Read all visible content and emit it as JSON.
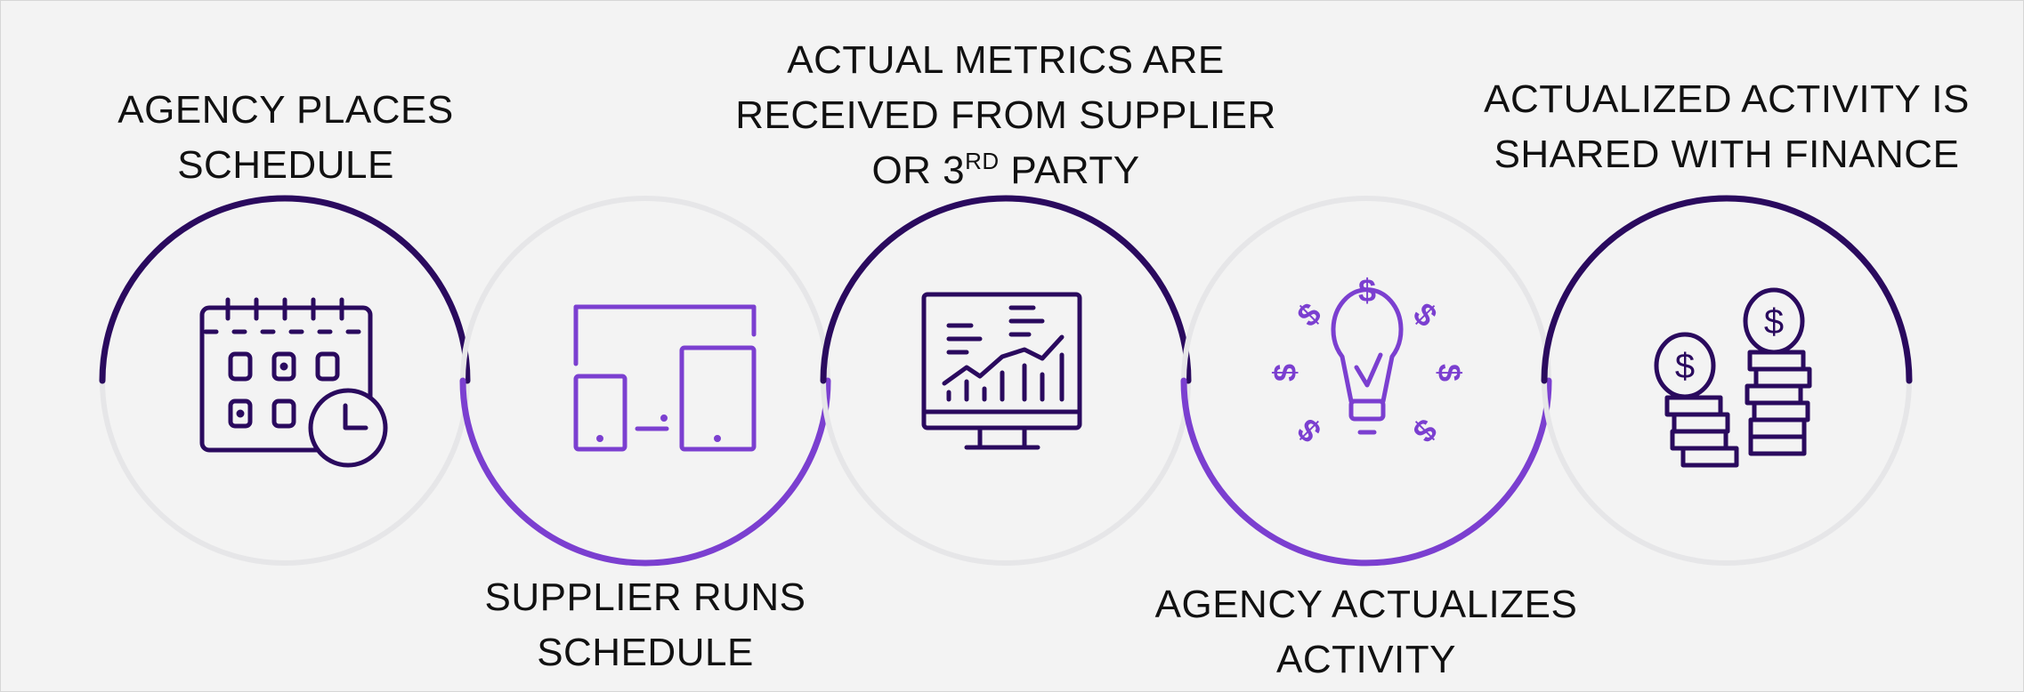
{
  "colors": {
    "background": "#f3f3f3",
    "ring": "#e6e6e8",
    "dark_arc": "#2a0a5e",
    "light_arc": "#7b3fd0"
  },
  "steps": [
    {
      "lines": [
        "AGENCY PLACES",
        "SCHEDULE"
      ],
      "icon": "calendar-clock-icon",
      "arc": "top"
    },
    {
      "lines": [
        "SUPPLIER RUNS",
        "SCHEDULE"
      ],
      "icon": "devices-icon",
      "arc": "bottom"
    },
    {
      "lines": [
        "ACTUAL METRICS ARE",
        "RECEIVED FROM SUPPLIER",
        "OR 3"
      ],
      "sup": "RD",
      "tail": " PARTY",
      "icon": "monitor-chart-icon",
      "arc": "top"
    },
    {
      "lines": [
        "AGENCY ACTUALIZES",
        "ACTIVITY"
      ],
      "icon": "lightbulb-dollar-icon",
      "arc": "bottom"
    },
    {
      "lines": [
        "ACTUALIZED ACTIVITY IS",
        "SHARED WITH FINANCE"
      ],
      "icon": "coin-stacks-icon",
      "arc": "top"
    }
  ]
}
